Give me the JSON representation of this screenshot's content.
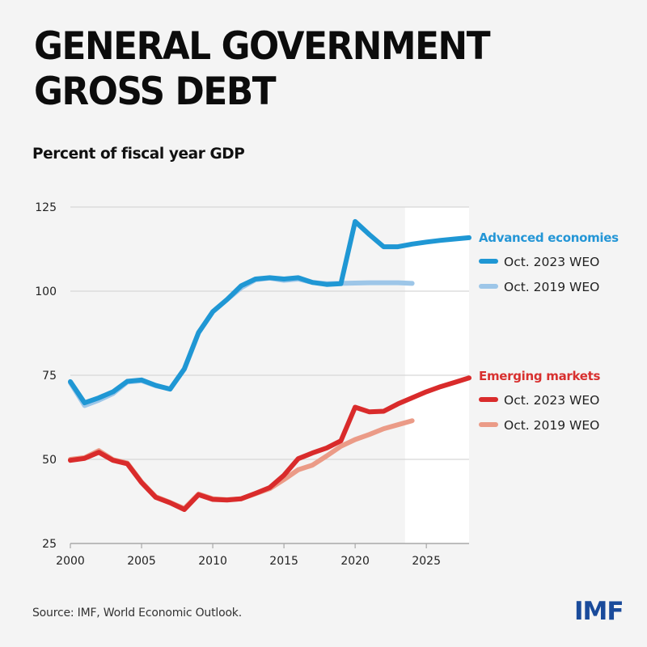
{
  "header": {
    "title_line1": "GENERAL GOVERNMENT",
    "title_line2": "GROSS DEBT",
    "subtitle": "Percent of fiscal year GDP"
  },
  "footer": {
    "source": "Source: IMF, World Economic Outlook.",
    "logo": "IMF",
    "logo_color": "#1a4b9b"
  },
  "chart_data": {
    "type": "line",
    "title": "GENERAL GOVERNMENT GROSS DEBT",
    "subtitle": "Percent of fiscal year GDP",
    "xlabel": "",
    "ylabel": "Percent of fiscal year GDP",
    "xlim": [
      2000,
      2028
    ],
    "ylim": [
      25,
      125
    ],
    "x_ticks": [
      2000,
      2005,
      2010,
      2015,
      2020,
      2025
    ],
    "y_ticks": [
      25,
      50,
      75,
      100,
      125
    ],
    "grid": "horizontal",
    "projection_shading_from": 2023.5,
    "legend_placement": "right",
    "groups": [
      {
        "name": "Advanced economies",
        "color": "#2496d6",
        "series": [
          {
            "name": "Oct. 2019 WEO",
            "color": "#9dc6e8",
            "x": [
              2000,
              2001,
              2002,
              2003,
              2004,
              2005,
              2006,
              2007,
              2008,
              2009,
              2010,
              2011,
              2012,
              2013,
              2014,
              2015,
              2016,
              2017,
              2018,
              2019,
              2020,
              2021,
              2022,
              2023,
              2024
            ],
            "values": [
              72.8,
              66.0,
              67.6,
              69.6,
              73.0,
              73.4,
              71.9,
              70.9,
              76.8,
              87.6,
              93.9,
              97.5,
              101.0,
              103.4,
              103.9,
              103.2,
              103.6,
              102.6,
              102.2,
              102.3,
              102.4,
              102.5,
              102.5,
              102.5,
              102.3
            ]
          },
          {
            "name": "Oct. 2023 WEO",
            "color": "#1f97d4",
            "x": [
              2000,
              2001,
              2002,
              2003,
              2004,
              2005,
              2006,
              2007,
              2008,
              2009,
              2010,
              2011,
              2012,
              2013,
              2014,
              2015,
              2016,
              2017,
              2018,
              2019,
              2020,
              2021,
              2022,
              2023,
              2024,
              2025,
              2026,
              2027,
              2028
            ],
            "values": [
              73.1,
              66.8,
              68.3,
              70.1,
              73.2,
              73.6,
              72.0,
              70.9,
              76.9,
              87.7,
              93.9,
              97.5,
              101.6,
              103.6,
              104.0,
              103.6,
              104.0,
              102.6,
              102.0,
              102.2,
              120.7,
              116.8,
              113.2,
              113.2,
              114.0,
              114.6,
              115.1,
              115.5,
              115.9
            ]
          }
        ]
      },
      {
        "name": "Emerging markets",
        "color": "#d8302f",
        "series": [
          {
            "name": "Oct. 2019 WEO",
            "color": "#eb9b87",
            "x": [
              2000,
              2001,
              2002,
              2003,
              2004,
              2005,
              2006,
              2007,
              2008,
              2009,
              2010,
              2011,
              2012,
              2013,
              2014,
              2015,
              2016,
              2017,
              2018,
              2019,
              2020,
              2021,
              2022,
              2023,
              2024
            ],
            "values": [
              50.0,
              50.5,
              52.6,
              49.9,
              48.9,
              43.3,
              38.9,
              37.2,
              35.4,
              39.7,
              38.3,
              38.0,
              38.3,
              39.8,
              41.3,
              44.0,
              46.9,
              48.3,
              51.0,
              53.9,
              55.9,
              57.4,
              59.1,
              60.3,
              61.5
            ]
          },
          {
            "name": "Oct. 2023 WEO",
            "color": "#d92b2b",
            "x": [
              2000,
              2001,
              2002,
              2003,
              2004,
              2005,
              2006,
              2007,
              2008,
              2009,
              2010,
              2011,
              2012,
              2013,
              2014,
              2015,
              2016,
              2017,
              2018,
              2019,
              2020,
              2021,
              2022,
              2023,
              2024,
              2025,
              2026,
              2027,
              2028
            ],
            "values": [
              49.7,
              50.3,
              52.1,
              49.7,
              48.7,
              43.1,
              38.7,
              37.1,
              35.1,
              39.5,
              38.1,
              37.9,
              38.3,
              39.9,
              41.6,
              45.3,
              50.2,
              51.9,
              53.4,
              55.5,
              65.5,
              64.1,
              64.3,
              66.5,
              68.3,
              70.1,
              71.6,
              72.9,
              74.2
            ]
          }
        ]
      }
    ]
  }
}
